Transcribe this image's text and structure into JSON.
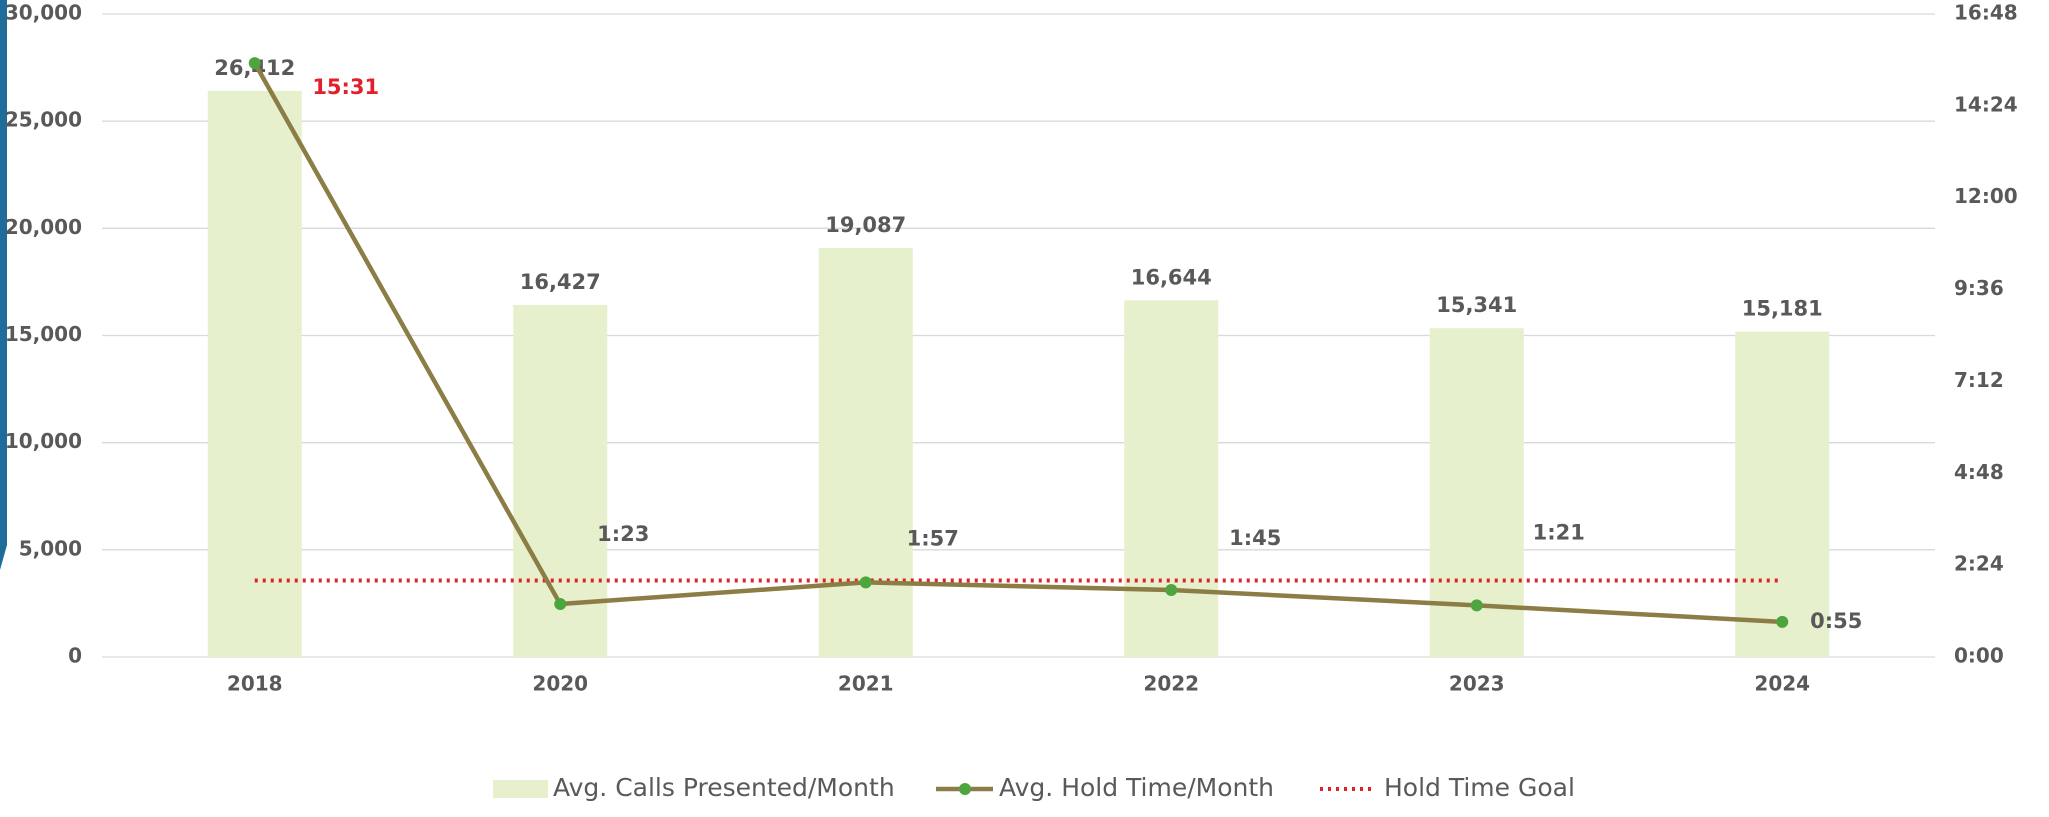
{
  "chart_data": {
    "type": "bar-line",
    "categories": [
      "2018",
      "2020",
      "2021",
      "2022",
      "2023",
      "2024"
    ],
    "series": [
      {
        "name": "Avg. Calls Presented/Month",
        "type": "bar",
        "color": "#e6f0cc",
        "values": [
          26412,
          16427,
          19087,
          16644,
          15341,
          15181
        ],
        "value_labels": [
          "26,412",
          "16,427",
          "19,087",
          "16,644",
          "15,341",
          "15,181"
        ]
      },
      {
        "name": "Avg. Hold Time/Month",
        "type": "line",
        "axis": "y2",
        "color": "#8b7d45",
        "marker_color": "#4ea53e",
        "values": [
          15.5167,
          1.3833,
          1.95,
          1.75,
          1.35,
          0.9167
        ],
        "value_labels": [
          "15:31",
          "1:23",
          "1:57",
          "1:45",
          "1:21",
          "0:55"
        ]
      },
      {
        "name": "Hold Time Goal",
        "type": "dotted-line",
        "axis": "y2",
        "color": "#e0202a",
        "values": [
          2,
          2,
          2,
          2,
          2,
          2
        ]
      }
    ],
    "ylim": [
      0,
      30000
    ],
    "yticks": [
      0,
      {
        "value": 5000,
        "label": "5,000"
      },
      {
        "value": 10000,
        "label": "10,000"
      },
      {
        "value": 15000,
        "label": "15,000"
      },
      {
        "value": 20000,
        "label": "20,000"
      },
      {
        "value": 25000,
        "label": "25,000"
      },
      {
        "value": 30000,
        "label": "30,000"
      }
    ],
    "y2lim": [
      0,
      16.8
    ],
    "y2ticks": [
      {
        "value": 0,
        "label": "0:00"
      },
      {
        "value": 2.4,
        "label": "2:24"
      },
      {
        "value": 4.8,
        "label": "4:48"
      },
      {
        "value": 7.2,
        "label": "7:12"
      },
      {
        "value": 9.6,
        "label": "9:36"
      },
      {
        "value": 12,
        "label": "12:00"
      },
      {
        "value": 14.4,
        "label": "14:24"
      },
      {
        "value": 16.8,
        "label": "16:48"
      }
    ],
    "grid": true
  }
}
